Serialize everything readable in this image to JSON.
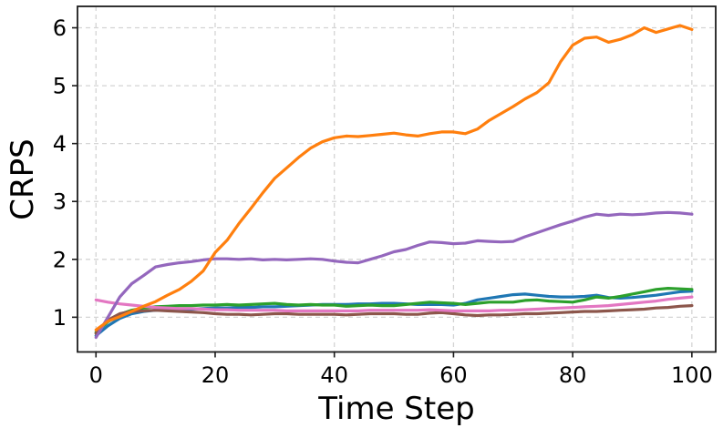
{
  "figure": {
    "background": "#ffffff",
    "spine_color": "#1c1c1c",
    "grid_color": "#d4d4d4",
    "tick_color": "#1c1c1c",
    "text_color": "#000000"
  },
  "chart_data": {
    "type": "line",
    "title": "",
    "xlabel": "Time Step",
    "ylabel": "CRPS",
    "xlim": [
      -3.1,
      104
    ],
    "ylim": [
      0.4,
      6.37
    ],
    "xticks": [
      0,
      20,
      40,
      60,
      80,
      100
    ],
    "yticks": [
      1,
      2,
      3,
      4,
      5,
      6
    ],
    "grid": "dashed",
    "legend": "none",
    "x": [
      0,
      2,
      4,
      6,
      8,
      10,
      12,
      14,
      16,
      18,
      20,
      22,
      24,
      26,
      28,
      30,
      32,
      34,
      36,
      38,
      40,
      42,
      44,
      46,
      48,
      50,
      52,
      54,
      56,
      58,
      60,
      62,
      64,
      66,
      68,
      70,
      72,
      74,
      76,
      78,
      80,
      82,
      84,
      86,
      88,
      90,
      92,
      94,
      96,
      98,
      100
    ],
    "series": [
      {
        "name": "blue",
        "color": "#1f77b4",
        "values": [
          0.68,
          0.85,
          0.98,
          1.06,
          1.1,
          1.12,
          1.13,
          1.14,
          1.14,
          1.15,
          1.16,
          1.16,
          1.17,
          1.17,
          1.18,
          1.18,
          1.19,
          1.2,
          1.21,
          1.22,
          1.22,
          1.22,
          1.23,
          1.23,
          1.24,
          1.24,
          1.23,
          1.22,
          1.22,
          1.22,
          1.21,
          1.24,
          1.3,
          1.33,
          1.36,
          1.39,
          1.4,
          1.38,
          1.36,
          1.35,
          1.35,
          1.36,
          1.38,
          1.34,
          1.33,
          1.34,
          1.36,
          1.38,
          1.41,
          1.44,
          1.45
        ]
      },
      {
        "name": "green",
        "color": "#2ca02c",
        "values": [
          0.74,
          0.92,
          1.05,
          1.12,
          1.16,
          1.18,
          1.19,
          1.2,
          1.2,
          1.21,
          1.21,
          1.22,
          1.21,
          1.22,
          1.23,
          1.24,
          1.22,
          1.21,
          1.22,
          1.21,
          1.21,
          1.19,
          1.2,
          1.21,
          1.2,
          1.2,
          1.22,
          1.24,
          1.26,
          1.25,
          1.24,
          1.22,
          1.24,
          1.26,
          1.26,
          1.26,
          1.29,
          1.3,
          1.28,
          1.27,
          1.26,
          1.3,
          1.35,
          1.33,
          1.36,
          1.4,
          1.44,
          1.48,
          1.5,
          1.49,
          1.48
        ]
      },
      {
        "name": "brown",
        "color": "#8c564b",
        "values": [
          0.72,
          0.95,
          1.06,
          1.1,
          1.11,
          1.12,
          1.11,
          1.1,
          1.09,
          1.08,
          1.06,
          1.05,
          1.05,
          1.04,
          1.05,
          1.06,
          1.06,
          1.05,
          1.05,
          1.05,
          1.05,
          1.04,
          1.05,
          1.06,
          1.06,
          1.06,
          1.05,
          1.05,
          1.07,
          1.08,
          1.06,
          1.04,
          1.03,
          1.04,
          1.04,
          1.05,
          1.06,
          1.06,
          1.07,
          1.08,
          1.09,
          1.1,
          1.1,
          1.11,
          1.12,
          1.13,
          1.14,
          1.16,
          1.17,
          1.19,
          1.2
        ]
      },
      {
        "name": "pink",
        "color": "#e377c2",
        "values": [
          1.3,
          1.26,
          1.23,
          1.21,
          1.19,
          1.17,
          1.16,
          1.15,
          1.15,
          1.14,
          1.13,
          1.13,
          1.12,
          1.12,
          1.12,
          1.12,
          1.11,
          1.11,
          1.11,
          1.11,
          1.11,
          1.11,
          1.11,
          1.12,
          1.12,
          1.12,
          1.12,
          1.12,
          1.13,
          1.12,
          1.11,
          1.11,
          1.11,
          1.11,
          1.12,
          1.12,
          1.13,
          1.14,
          1.15,
          1.16,
          1.17,
          1.18,
          1.19,
          1.2,
          1.22,
          1.24,
          1.26,
          1.28,
          1.31,
          1.33,
          1.35
        ]
      },
      {
        "name": "purple",
        "color": "#9467bd",
        "values": [
          0.65,
          1.0,
          1.35,
          1.58,
          1.72,
          1.87,
          1.91,
          1.94,
          1.96,
          1.99,
          2.01,
          2.01,
          2.0,
          2.01,
          1.99,
          2.0,
          1.99,
          2.0,
          2.01,
          2.0,
          1.97,
          1.95,
          1.94,
          2.0,
          2.06,
          2.13,
          2.17,
          2.24,
          2.3,
          2.29,
          2.27,
          2.28,
          2.32,
          2.31,
          2.3,
          2.31,
          2.39,
          2.46,
          2.53,
          2.6,
          2.66,
          2.73,
          2.78,
          2.76,
          2.78,
          2.77,
          2.78,
          2.8,
          2.81,
          2.8,
          2.78
        ]
      },
      {
        "name": "orange",
        "color": "#ff7f0e",
        "values": [
          0.78,
          0.93,
          1.01,
          1.1,
          1.19,
          1.27,
          1.38,
          1.48,
          1.62,
          1.8,
          2.12,
          2.33,
          2.62,
          2.88,
          3.15,
          3.4,
          3.58,
          3.76,
          3.92,
          4.03,
          4.1,
          4.13,
          4.12,
          4.14,
          4.16,
          4.18,
          4.15,
          4.13,
          4.17,
          4.2,
          4.2,
          4.17,
          4.25,
          4.4,
          4.52,
          4.64,
          4.77,
          4.88,
          5.05,
          5.42,
          5.7,
          5.82,
          5.84,
          5.75,
          5.8,
          5.88,
          6.0,
          5.92,
          5.98,
          6.04,
          5.97
        ]
      }
    ]
  }
}
